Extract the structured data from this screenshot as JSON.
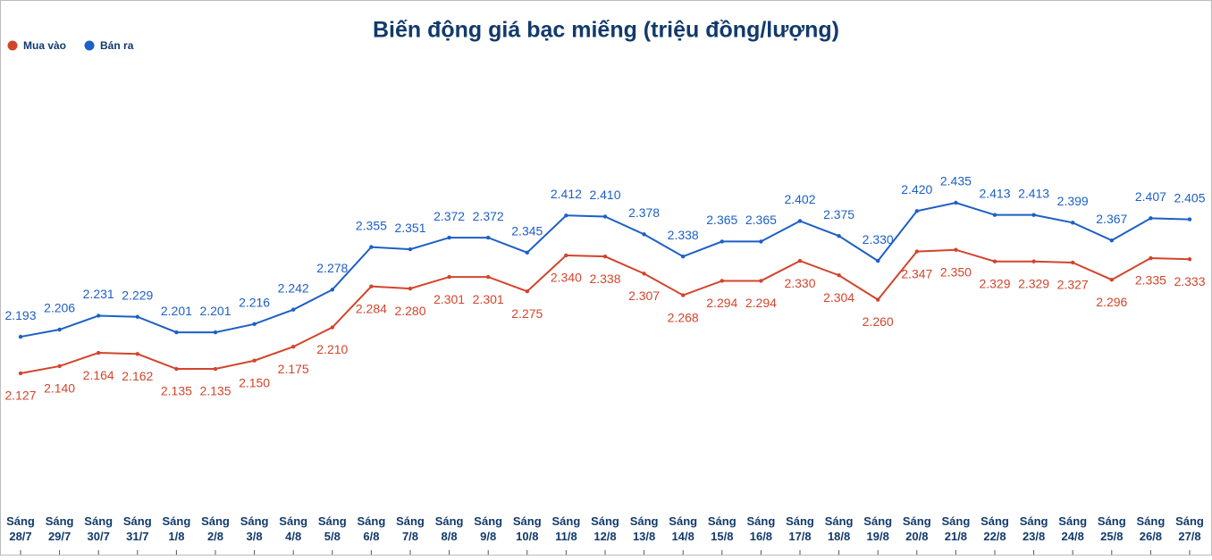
{
  "chart_data": {
    "type": "line",
    "title": "Biến động giá bạc miếng (triệu đồng/lượng)",
    "categories": [
      "Sáng 28/7",
      "Sáng 29/7",
      "Sáng 30/7",
      "Sáng 31/7",
      "Sáng 1/8",
      "Sáng 2/8",
      "Sáng 3/8",
      "Sáng 4/8",
      "Sáng 5/8",
      "Sáng 6/8",
      "Sáng 7/8",
      "Sáng 8/8",
      "Sáng 9/8",
      "Sáng 10/8",
      "Sáng 11/8",
      "Sáng 12/8",
      "Sáng 13/8",
      "Sáng 14/8",
      "Sáng 15/8",
      "Sáng 16/8",
      "Sáng 17/8",
      "Sáng 18/8",
      "Sáng 19/8",
      "Sáng 20/8",
      "Sáng 21/8",
      "Sáng 22/8",
      "Sáng 23/8",
      "Sáng 24/8",
      "Sáng 25/8",
      "Sáng 26/8",
      "Sáng 27/8"
    ],
    "series": [
      {
        "name": "Mua vào",
        "color": "#d2452b",
        "values": [
          2.127,
          2.14,
          2.164,
          2.162,
          2.135,
          2.135,
          2.15,
          2.175,
          2.21,
          2.284,
          2.28,
          2.301,
          2.301,
          2.275,
          2.34,
          2.338,
          2.307,
          2.268,
          2.294,
          2.294,
          2.33,
          2.304,
          2.26,
          2.347,
          2.35,
          2.329,
          2.329,
          2.327,
          2.296,
          2.335,
          2.333
        ],
        "value_labels": [
          "2.127",
          "2.140",
          "2.164",
          "2.162",
          "2.135",
          "2.135",
          "2.150",
          "2.175",
          "2.210",
          "2.284",
          "2.280",
          "2.301",
          "2.301",
          "2.275",
          "2.340",
          "2.338",
          "2.307",
          "2.268",
          "2.294",
          "2.294",
          "2.330",
          "2.304",
          "2.260",
          "2.347",
          "2.350",
          "2.329",
          "2.329",
          "2.327",
          "2.296",
          "2.335",
          "2.333"
        ]
      },
      {
        "name": "Bán ra",
        "color": "#1d5fc6",
        "values": [
          2.193,
          2.206,
          2.231,
          2.229,
          2.201,
          2.201,
          2.216,
          2.242,
          2.278,
          2.355,
          2.351,
          2.372,
          2.372,
          2.345,
          2.412,
          2.41,
          2.378,
          2.338,
          2.365,
          2.365,
          2.402,
          2.375,
          2.33,
          2.42,
          2.435,
          2.413,
          2.413,
          2.399,
          2.367,
          2.407,
          2.405
        ],
        "value_labels": [
          "2.193",
          "2.206",
          "2.231",
          "2.229",
          "2.201",
          "2.201",
          "2.216",
          "2.242",
          "2.278",
          "2.355",
          "2.351",
          "2.372",
          "2.372",
          "2.345",
          "2.412",
          "2.410",
          "2.378",
          "2.338",
          "2.365",
          "2.365",
          "2.402",
          "2.375",
          "2.330",
          "2.420",
          "2.435",
          "2.413",
          "2.413",
          "2.399",
          "2.367",
          "2.407",
          "2.405"
        ]
      }
    ]
  }
}
